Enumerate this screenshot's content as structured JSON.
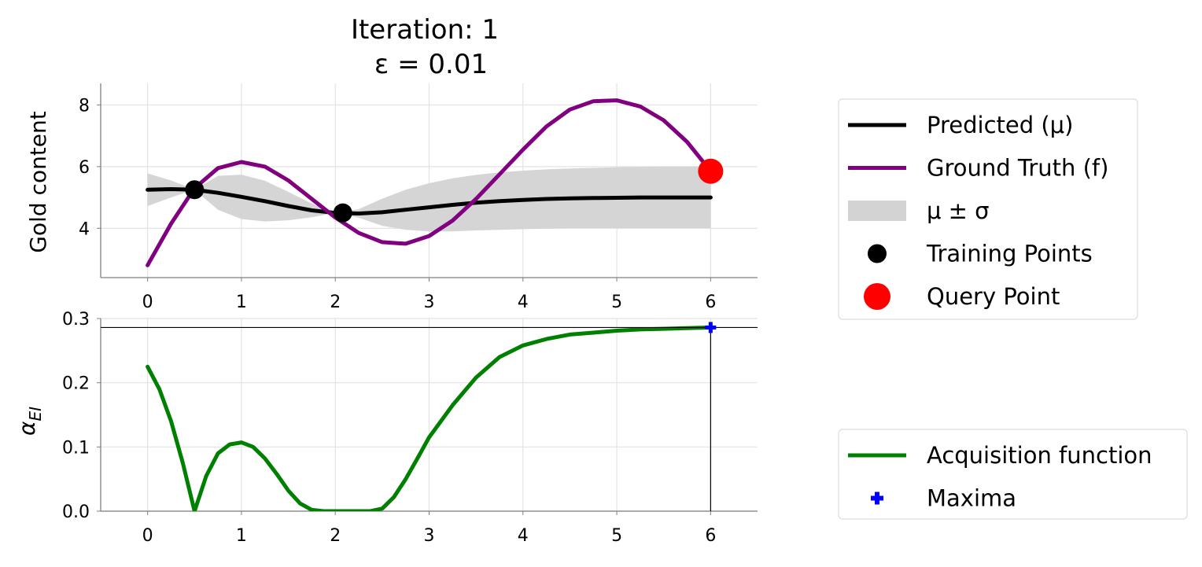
{
  "figure": {
    "title_line1": "Iteration: 1",
    "title_line2": "ε = 0.01"
  },
  "chart_data": [
    {
      "type": "line",
      "ylabel": "Gold content",
      "xlim": [
        -0.5,
        6.5
      ],
      "ylim": [
        2.4,
        8.7
      ],
      "x_ticks": [
        0,
        1,
        2,
        3,
        4,
        5,
        6
      ],
      "y_ticks": [
        4,
        6,
        8
      ],
      "grid": true,
      "legend": {
        "placement": "right",
        "entries": [
          {
            "label": "Predicted (μ)",
            "kind": "line",
            "color": "#000000"
          },
          {
            "label": "Ground Truth (f)",
            "kind": "line",
            "color": "#800080"
          },
          {
            "label": "μ ± σ",
            "kind": "patch",
            "color": "#d3d3d3"
          },
          {
            "label": "Training Points",
            "kind": "marker",
            "color": "#000000"
          },
          {
            "label": "Query Point",
            "kind": "marker",
            "color": "#ff0000"
          }
        ]
      },
      "x": [
        0.0,
        0.25,
        0.5,
        0.75,
        1.0,
        1.25,
        1.5,
        1.75,
        2.0,
        2.25,
        2.5,
        2.75,
        3.0,
        3.25,
        3.5,
        3.75,
        4.0,
        4.25,
        4.5,
        4.75,
        5.0,
        5.25,
        5.5,
        5.75,
        6.0
      ],
      "series": [
        {
          "name": "Predicted (μ)",
          "color": "#000000",
          "values": [
            5.25,
            5.27,
            5.25,
            5.15,
            5.02,
            4.88,
            4.72,
            4.58,
            4.5,
            4.48,
            4.52,
            4.6,
            4.68,
            4.76,
            4.83,
            4.88,
            4.92,
            4.95,
            4.97,
            4.98,
            4.99,
            5.0,
            5.0,
            5.0,
            5.0
          ]
        },
        {
          "name": "Ground Truth (f)",
          "color": "#800080",
          "values": [
            2.8,
            4.15,
            5.3,
            5.95,
            6.15,
            6.0,
            5.55,
            4.95,
            4.35,
            3.85,
            3.55,
            3.5,
            3.75,
            4.25,
            4.95,
            5.75,
            6.55,
            7.3,
            7.85,
            8.12,
            8.15,
            7.95,
            7.5,
            6.8,
            5.85
          ]
        },
        {
          "name": "μ ± σ",
          "color": "#d3d3d3",
          "lower": [
            4.72,
            5.0,
            5.25,
            4.6,
            4.3,
            4.22,
            4.26,
            4.36,
            4.5,
            4.34,
            4.08,
            3.95,
            3.9,
            3.9,
            3.93,
            3.95,
            3.97,
            3.99,
            4.0,
            4.0,
            4.0,
            4.0,
            4.0,
            4.0,
            4.0
          ],
          "upper": [
            5.78,
            5.55,
            5.25,
            5.7,
            5.74,
            5.54,
            5.18,
            4.8,
            4.5,
            4.62,
            4.96,
            5.25,
            5.46,
            5.62,
            5.73,
            5.81,
            5.87,
            5.91,
            5.94,
            5.96,
            5.98,
            5.99,
            6.0,
            6.0,
            6.0
          ]
        }
      ],
      "training_points": {
        "name": "Training Points",
        "x": [
          0.5,
          2.08
        ],
        "y": [
          5.25,
          4.5
        ],
        "color": "#000000"
      },
      "query_point": {
        "name": "Query Point",
        "x": [
          6.0
        ],
        "y": [
          5.85
        ],
        "color": "#ff0000"
      }
    },
    {
      "type": "line",
      "ylabel": "α",
      "ylabel_sub": "EI",
      "xlim": [
        -0.5,
        6.5
      ],
      "ylim": [
        0.0,
        0.3
      ],
      "x_ticks": [
        0,
        1,
        2,
        3,
        4,
        5,
        6
      ],
      "y_ticks": [
        0.0,
        0.1,
        0.2,
        0.3
      ],
      "grid": true,
      "legend": {
        "placement": "right",
        "entries": [
          {
            "label": "Acquisition function",
            "kind": "line",
            "color": "#008000"
          },
          {
            "label": "Maxima",
            "kind": "plus",
            "color": "#0000ff"
          }
        ]
      },
      "x": [
        0.0,
        0.125,
        0.25,
        0.375,
        0.5,
        0.625,
        0.75,
        0.875,
        1.0,
        1.125,
        1.25,
        1.375,
        1.5,
        1.625,
        1.75,
        1.875,
        2.0,
        2.125,
        2.25,
        2.375,
        2.5,
        2.625,
        2.75,
        2.875,
        3.0,
        3.25,
        3.5,
        3.75,
        4.0,
        4.25,
        4.5,
        4.75,
        5.0,
        5.25,
        5.5,
        5.75,
        6.0
      ],
      "series": [
        {
          "name": "Acquisition function",
          "color": "#008000",
          "values": [
            0.225,
            0.19,
            0.14,
            0.075,
            0.0,
            0.055,
            0.09,
            0.104,
            0.107,
            0.1,
            0.082,
            0.058,
            0.032,
            0.012,
            0.002,
            0.0,
            0.0,
            0.0,
            0.0,
            0.0,
            0.004,
            0.022,
            0.05,
            0.082,
            0.115,
            0.165,
            0.208,
            0.24,
            0.258,
            0.268,
            0.275,
            0.278,
            0.281,
            0.283,
            0.284,
            0.285,
            0.286
          ]
        }
      ],
      "maxima": {
        "name": "Maxima",
        "x": [
          6.0
        ],
        "y": [
          0.286
        ],
        "color": "#0000ff"
      }
    }
  ]
}
